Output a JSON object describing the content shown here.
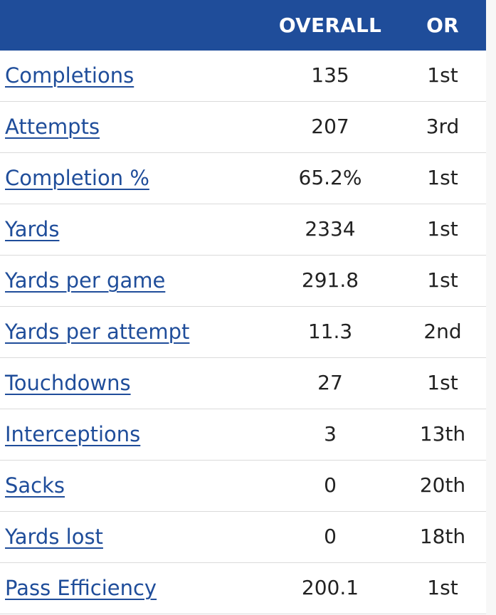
{
  "table": {
    "headers": {
      "stat": "",
      "overall": "OVERALL",
      "or": "OR"
    },
    "rows": [
      {
        "label": "Completions",
        "overall": "135",
        "or": "1st"
      },
      {
        "label": "Attempts",
        "overall": "207",
        "or": "3rd"
      },
      {
        "label": "Completion %",
        "overall": "65.2%",
        "or": "1st"
      },
      {
        "label": "Yards",
        "overall": "2334",
        "or": "1st"
      },
      {
        "label": "Yards per game",
        "overall": "291.8",
        "or": "1st"
      },
      {
        "label": "Yards per attempt",
        "overall": "11.3",
        "or": "2nd"
      },
      {
        "label": "Touchdowns",
        "overall": "27",
        "or": "1st"
      },
      {
        "label": "Interceptions",
        "overall": "3",
        "or": "13th"
      },
      {
        "label": "Sacks",
        "overall": "0",
        "or": "20th"
      },
      {
        "label": "Yards lost",
        "overall": "0",
        "or": "18th"
      },
      {
        "label": "Pass Efficiency",
        "overall": "200.1",
        "or": "1st"
      }
    ]
  },
  "colors": {
    "header_background": "#1f4d9a",
    "link": "#1f4d9a",
    "text": "#222222",
    "divider": "#dadada"
  }
}
